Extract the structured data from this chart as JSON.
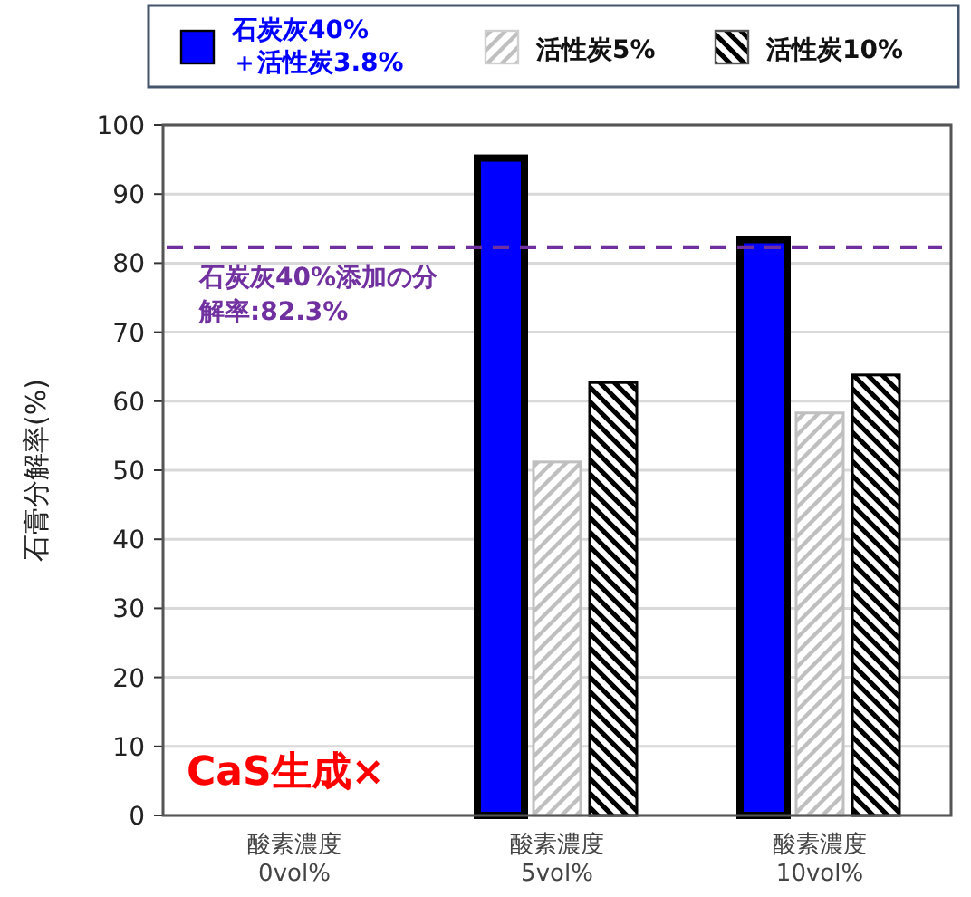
{
  "chart_data": {
    "type": "bar",
    "ylabel": "石膏分解率(%)",
    "categories": [
      "酸素濃度\n0vol%",
      "酸素濃度\n5vol%",
      "酸素濃度\n10vol%"
    ],
    "series": [
      {
        "name": "石炭灰40%\n＋活性炭3.8%",
        "color": "#0000ff",
        "values": [
          null,
          95.2,
          83.4
        ]
      },
      {
        "name": "活性炭5%",
        "color": "#bfbfbf",
        "values": [
          null,
          51.2,
          58.3
        ]
      },
      {
        "name": "活性炭10%",
        "color": "#000000",
        "values": [
          null,
          62.7,
          63.8
        ]
      }
    ],
    "ylim": [
      0,
      100
    ],
    "yticks": [
      0,
      10,
      20,
      30,
      40,
      50,
      60,
      70,
      80,
      90,
      100
    ],
    "grid": "y",
    "legend": "top",
    "ref_lines": [
      {
        "axis": "y",
        "value": 82.3,
        "label": "石炭灰40%添加の分解率:82.3%",
        "color": "#7030a0",
        "line_style": "dashed"
      }
    ],
    "annotations": [
      "CaS生成×"
    ]
  }
}
